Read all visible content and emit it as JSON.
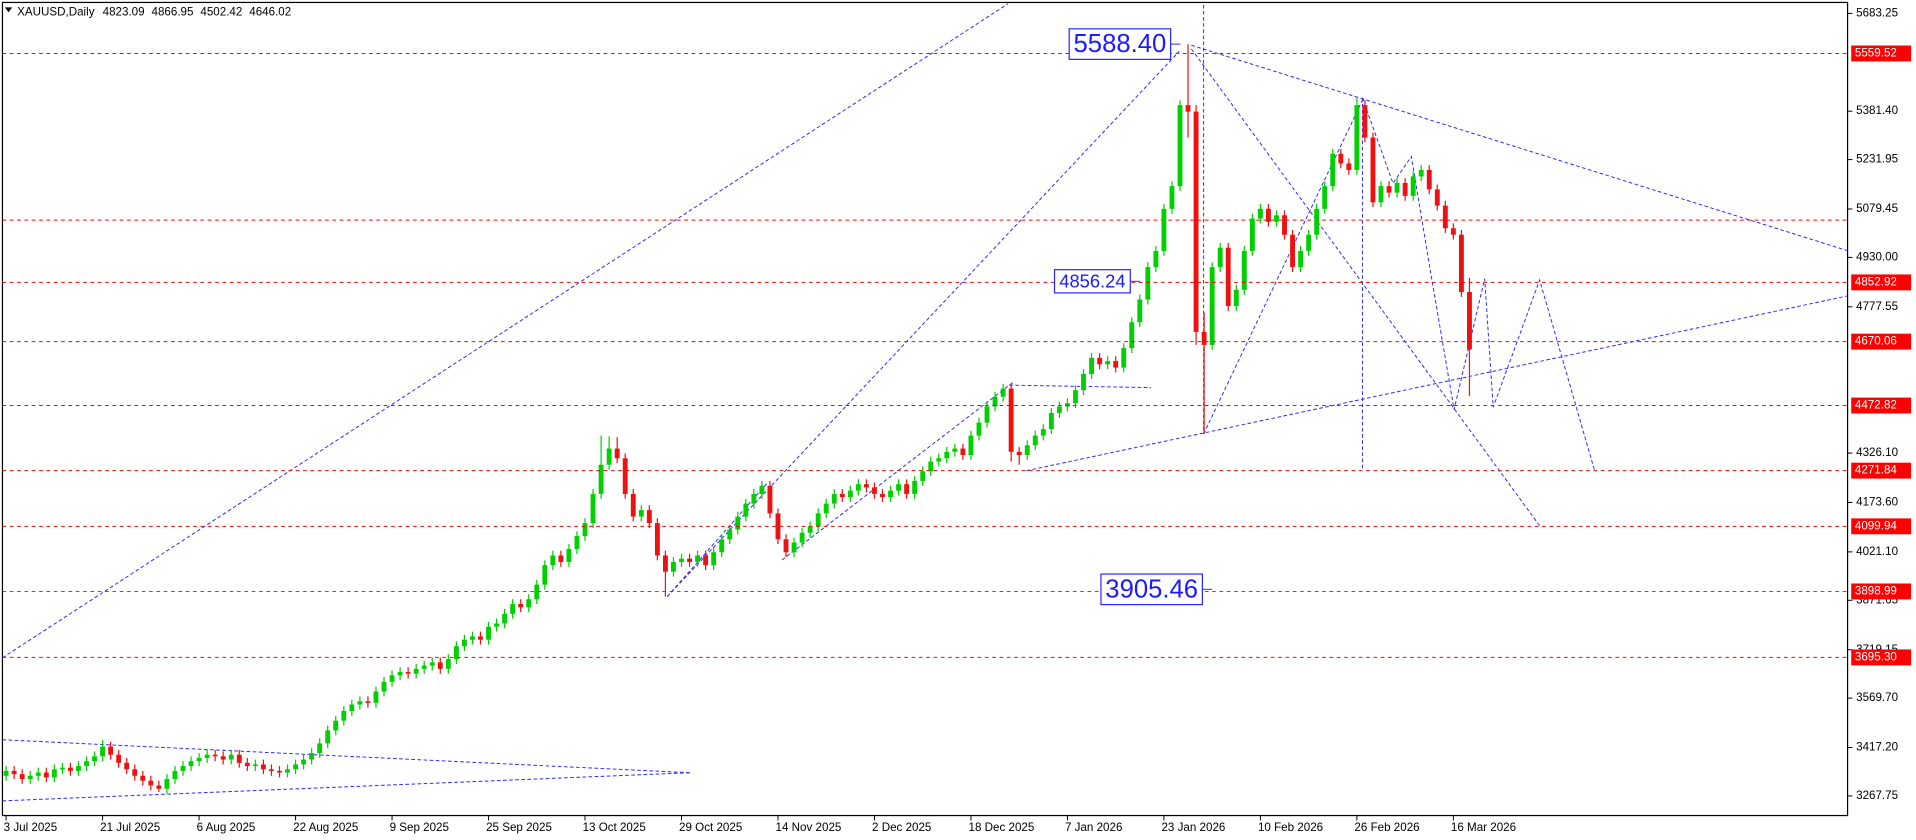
{
  "chart_data": {
    "type": "candlestick",
    "title": "XAUUSD,Daily",
    "up_color": "#00d000",
    "down_color": "#ee1111",
    "level_color": "#ff0000",
    "ylim": [
      3211,
      5717
    ],
    "yticks": [
      {
        "value": 5683.25,
        "label": "5683.25"
      },
      {
        "value": 5381.4,
        "label": "5381.40"
      },
      {
        "value": 5231.95,
        "label": "5231.95"
      },
      {
        "value": 5079.45,
        "label": "5079.45"
      },
      {
        "value": 4930,
        "label": "4930.00"
      },
      {
        "value": 4777.55,
        "label": "4777.55"
      },
      {
        "value": 4326.1,
        "label": "4326.10"
      },
      {
        "value": 4173.6,
        "label": "4173.60"
      },
      {
        "value": 4021.1,
        "label": "4021.10"
      },
      {
        "value": 3871.65,
        "label": "3871.65"
      },
      {
        "value": 3719.15,
        "label": "3719.15"
      },
      {
        "value": 3569.7,
        "label": "3569.70"
      },
      {
        "value": 3417.2,
        "label": "3417.20"
      },
      {
        "value": 3267.75,
        "label": "3267.75"
      }
    ],
    "x_labels": [
      "3 Jul 2025",
      "21 Jul 2025",
      "6 Aug 2025",
      "22 Aug 2025",
      "9 Sep 2025",
      "25 Sep 2025",
      "13 Oct 2025",
      "29 Oct 2025",
      "14 Nov 2025",
      "2 Dec 2025",
      "18 Dec 2025",
      "7 Jan 2026",
      "23 Jan 2026",
      "10 Feb 2026",
      "26 Feb 2026",
      "16 Mar 2026"
    ],
    "levels": [
      {
        "value": 5559.52,
        "label": "5559.52"
      },
      {
        "value": 4852.92,
        "label": "4852.92"
      },
      {
        "value": 4670.06,
        "label": "4670.06"
      },
      {
        "value": 4472.82,
        "label": "4472.82"
      },
      {
        "value": 4271.84,
        "label": "4271.84"
      },
      {
        "value": 4099.94,
        "label": "4099.94"
      },
      {
        "value": 3898.99,
        "label": "3898.99"
      },
      {
        "value": 3695.3,
        "label": "3695.30"
      }
    ],
    "unlabeled_levels": [
      5045
    ],
    "annotations": [
      {
        "value": 5588.4,
        "label": "5588.40"
      },
      {
        "value": 4856.24,
        "label": "4856.24"
      },
      {
        "value": 3905.46,
        "label": "3905.46"
      }
    ],
    "candles": [
      [
        3330,
        3360,
        3315,
        3345
      ],
      [
        3345,
        3360,
        3320,
        3335
      ],
      [
        3335,
        3350,
        3305,
        3320
      ],
      [
        3320,
        3345,
        3305,
        3330
      ],
      [
        3330,
        3355,
        3315,
        3340
      ],
      [
        3340,
        3355,
        3310,
        3325
      ],
      [
        3325,
        3365,
        3310,
        3350
      ],
      [
        3350,
        3370,
        3335,
        3355
      ],
      [
        3355,
        3370,
        3330,
        3345
      ],
      [
        3345,
        3375,
        3330,
        3360
      ],
      [
        3360,
        3390,
        3345,
        3375
      ],
      [
        3375,
        3405,
        3360,
        3390
      ],
      [
        3390,
        3440,
        3375,
        3420
      ],
      [
        3420,
        3435,
        3380,
        3395
      ],
      [
        3395,
        3410,
        3355,
        3370
      ],
      [
        3370,
        3385,
        3335,
        3350
      ],
      [
        3350,
        3365,
        3315,
        3330
      ],
      [
        3330,
        3345,
        3300,
        3315
      ],
      [
        3315,
        3330,
        3285,
        3300
      ],
      [
        3300,
        3315,
        3280,
        3290
      ],
      [
        3290,
        3335,
        3275,
        3320
      ],
      [
        3320,
        3360,
        3305,
        3345
      ],
      [
        3345,
        3375,
        3330,
        3360
      ],
      [
        3360,
        3390,
        3345,
        3375
      ],
      [
        3375,
        3400,
        3360,
        3385
      ],
      [
        3385,
        3410,
        3370,
        3395
      ],
      [
        3395,
        3410,
        3375,
        3390
      ],
      [
        3390,
        3405,
        3365,
        3380
      ],
      [
        3380,
        3410,
        3365,
        3395
      ],
      [
        3395,
        3410,
        3355,
        3370
      ],
      [
        3370,
        3385,
        3345,
        3360
      ],
      [
        3360,
        3380,
        3345,
        3365
      ],
      [
        3365,
        3380,
        3335,
        3350
      ],
      [
        3350,
        3365,
        3330,
        3345
      ],
      [
        3345,
        3360,
        3325,
        3340
      ],
      [
        3340,
        3365,
        3325,
        3350
      ],
      [
        3350,
        3380,
        3335,
        3365
      ],
      [
        3365,
        3395,
        3350,
        3380
      ],
      [
        3380,
        3415,
        3365,
        3400
      ],
      [
        3400,
        3445,
        3385,
        3430
      ],
      [
        3430,
        3485,
        3415,
        3470
      ],
      [
        3470,
        3515,
        3455,
        3500
      ],
      [
        3500,
        3545,
        3485,
        3530
      ],
      [
        3530,
        3565,
        3515,
        3550
      ],
      [
        3550,
        3575,
        3535,
        3560
      ],
      [
        3560,
        3575,
        3540,
        3555
      ],
      [
        3555,
        3605,
        3540,
        3590
      ],
      [
        3590,
        3635,
        3575,
        3620
      ],
      [
        3620,
        3655,
        3605,
        3640
      ],
      [
        3640,
        3665,
        3625,
        3650
      ],
      [
        3650,
        3665,
        3630,
        3645
      ],
      [
        3645,
        3675,
        3630,
        3660
      ],
      [
        3660,
        3685,
        3645,
        3670
      ],
      [
        3670,
        3695,
        3655,
        3680
      ],
      [
        3680,
        3695,
        3645,
        3660
      ],
      [
        3660,
        3705,
        3645,
        3690
      ],
      [
        3690,
        3745,
        3675,
        3730
      ],
      [
        3730,
        3765,
        3715,
        3750
      ],
      [
        3750,
        3775,
        3735,
        3760
      ],
      [
        3760,
        3775,
        3735,
        3750
      ],
      [
        3750,
        3805,
        3735,
        3790
      ],
      [
        3790,
        3815,
        3775,
        3800
      ],
      [
        3800,
        3845,
        3785,
        3830
      ],
      [
        3830,
        3875,
        3815,
        3860
      ],
      [
        3860,
        3875,
        3835,
        3850
      ],
      [
        3850,
        3890,
        3835,
        3875
      ],
      [
        3875,
        3935,
        3860,
        3920
      ],
      [
        3920,
        3995,
        3905,
        3980
      ],
      [
        3980,
        4025,
        3965,
        4010
      ],
      [
        4010,
        4025,
        3975,
        3990
      ],
      [
        3990,
        4045,
        3975,
        4030
      ],
      [
        4030,
        4085,
        4015,
        4070
      ],
      [
        4070,
        4125,
        4055,
        4110
      ],
      [
        4110,
        4215,
        4095,
        4200
      ],
      [
        4200,
        4380,
        4185,
        4290
      ],
      [
        4290,
        4378,
        4275,
        4340
      ],
      [
        4340,
        4375,
        4295,
        4310
      ],
      [
        4310,
        4325,
        4185,
        4200
      ],
      [
        4200,
        4215,
        4115,
        4130
      ],
      [
        4130,
        4165,
        4115,
        4150
      ],
      [
        4150,
        4165,
        4095,
        4110
      ],
      [
        4110,
        4125,
        3995,
        4010
      ],
      [
        4010,
        4025,
        3883,
        3960
      ],
      [
        3960,
        4005,
        3945,
        3990
      ],
      [
        3990,
        4015,
        3975,
        4000
      ],
      [
        4000,
        4015,
        3975,
        3990
      ],
      [
        3990,
        4025,
        3975,
        4010
      ],
      [
        4010,
        4025,
        3965,
        3980
      ],
      [
        3980,
        4035,
        3965,
        4020
      ],
      [
        4020,
        4075,
        4005,
        4060
      ],
      [
        4060,
        4105,
        4045,
        4090
      ],
      [
        4090,
        4145,
        4075,
        4130
      ],
      [
        4130,
        4185,
        4115,
        4170
      ],
      [
        4170,
        4215,
        4155,
        4200
      ],
      [
        4200,
        4240,
        4185,
        4225
      ],
      [
        4225,
        4240,
        4125,
        4140
      ],
      [
        4140,
        4155,
        4045,
        4060
      ],
      [
        4060,
        4075,
        4005,
        4020
      ],
      [
        4020,
        4065,
        4005,
        4050
      ],
      [
        4050,
        4095,
        4035,
        4080
      ],
      [
        4080,
        4115,
        4065,
        4100
      ],
      [
        4100,
        4155,
        4085,
        4140
      ],
      [
        4140,
        4185,
        4125,
        4170
      ],
      [
        4170,
        4215,
        4155,
        4200
      ],
      [
        4200,
        4215,
        4175,
        4190
      ],
      [
        4190,
        4225,
        4175,
        4210
      ],
      [
        4210,
        4245,
        4195,
        4230
      ],
      [
        4230,
        4245,
        4205,
        4220
      ],
      [
        4220,
        4235,
        4185,
        4200
      ],
      [
        4200,
        4215,
        4175,
        4190
      ],
      [
        4190,
        4225,
        4175,
        4210
      ],
      [
        4210,
        4245,
        4195,
        4230
      ],
      [
        4230,
        4245,
        4185,
        4200
      ],
      [
        4200,
        4255,
        4185,
        4240
      ],
      [
        4240,
        4285,
        4225,
        4270
      ],
      [
        4270,
        4315,
        4255,
        4300
      ],
      [
        4300,
        4325,
        4285,
        4310
      ],
      [
        4310,
        4345,
        4295,
        4330
      ],
      [
        4330,
        4355,
        4315,
        4340
      ],
      [
        4340,
        4355,
        4305,
        4320
      ],
      [
        4320,
        4395,
        4305,
        4380
      ],
      [
        4380,
        4435,
        4365,
        4420
      ],
      [
        4420,
        4485,
        4405,
        4470
      ],
      [
        4470,
        4515,
        4455,
        4500
      ],
      [
        4500,
        4540,
        4485,
        4525
      ],
      [
        4525,
        4540,
        4300,
        4330
      ],
      [
        4330,
        4345,
        4290,
        4320
      ],
      [
        4320,
        4365,
        4305,
        4350
      ],
      [
        4350,
        4395,
        4335,
        4380
      ],
      [
        4380,
        4415,
        4365,
        4400
      ],
      [
        4400,
        4465,
        4385,
        4450
      ],
      [
        4450,
        4485,
        4435,
        4470
      ],
      [
        4470,
        4495,
        4455,
        4480
      ],
      [
        4480,
        4535,
        4465,
        4520
      ],
      [
        4520,
        4585,
        4505,
        4570
      ],
      [
        4570,
        4635,
        4555,
        4620
      ],
      [
        4620,
        4635,
        4585,
        4600
      ],
      [
        4600,
        4625,
        4585,
        4610
      ],
      [
        4610,
        4625,
        4575,
        4590
      ],
      [
        4590,
        4665,
        4575,
        4650
      ],
      [
        4650,
        4745,
        4635,
        4730
      ],
      [
        4730,
        4815,
        4715,
        4800
      ],
      [
        4800,
        4915,
        4785,
        4900
      ],
      [
        4900,
        4965,
        4885,
        4950
      ],
      [
        4950,
        5095,
        4935,
        5080
      ],
      [
        5080,
        5165,
        5065,
        5150
      ],
      [
        5150,
        5415,
        5135,
        5400
      ],
      [
        5400,
        5588,
        5300,
        5380
      ],
      [
        5380,
        5400,
        4660,
        4700
      ],
      [
        4700,
        4760,
        4385,
        4660
      ],
      [
        4660,
        4915,
        4645,
        4900
      ],
      [
        4900,
        4975,
        4885,
        4960
      ],
      [
        4960,
        4975,
        4765,
        4780
      ],
      [
        4780,
        4845,
        4765,
        4830
      ],
      [
        4830,
        4965,
        4815,
        4950
      ],
      [
        4950,
        5065,
        4935,
        5050
      ],
      [
        5050,
        5095,
        5035,
        5080
      ],
      [
        5080,
        5095,
        5025,
        5040
      ],
      [
        5040,
        5075,
        5025,
        5060
      ],
      [
        5060,
        5075,
        4985,
        5000
      ],
      [
        5000,
        5015,
        4885,
        4900
      ],
      [
        4900,
        4965,
        4885,
        4950
      ],
      [
        4950,
        5015,
        4935,
        5000
      ],
      [
        5000,
        5095,
        4985,
        5080
      ],
      [
        5080,
        5165,
        5065,
        5150
      ],
      [
        5150,
        5265,
        5135,
        5250
      ],
      [
        5250,
        5265,
        5205,
        5220
      ],
      [
        5220,
        5235,
        5185,
        5200
      ],
      [
        5200,
        5425,
        5185,
        5400
      ],
      [
        5400,
        5415,
        5285,
        5300
      ],
      [
        5300,
        5315,
        5085,
        5100
      ],
      [
        5100,
        5165,
        5085,
        5150
      ],
      [
        5150,
        5165,
        5115,
        5130
      ],
      [
        5130,
        5175,
        5115,
        5160
      ],
      [
        5160,
        5175,
        5105,
        5120
      ],
      [
        5120,
        5195,
        5105,
        5180
      ],
      [
        5180,
        5215,
        5165,
        5200
      ],
      [
        5200,
        5215,
        5125,
        5140
      ],
      [
        5140,
        5155,
        5075,
        5090
      ],
      [
        5090,
        5105,
        5005,
        5020
      ],
      [
        5020,
        5035,
        4985,
        5000
      ],
      [
        5000,
        5015,
        4808,
        4823.09
      ],
      [
        4823.09,
        4866.95,
        4502.42,
        4646.02
      ]
    ]
  }
}
